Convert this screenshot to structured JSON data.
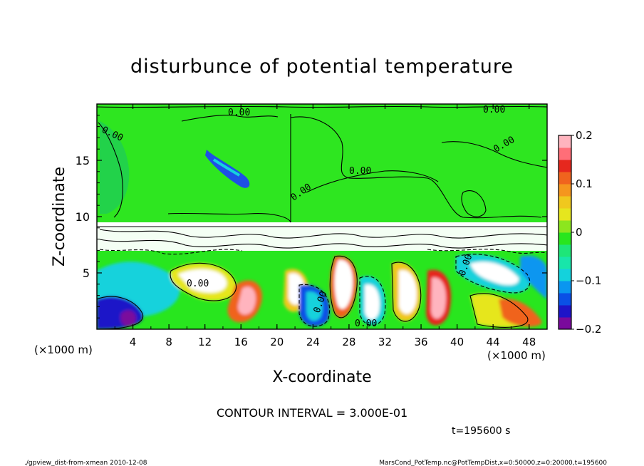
{
  "chart_data": {
    "type": "heatmap",
    "title": "disturbunce of potential temperature",
    "xlabel": "X-coordinate",
    "ylabel": "Z-coordinate",
    "x_unit": "(×1000 m)",
    "y_unit": "(×1000 m)",
    "xlim": [
      0,
      50
    ],
    "ylim": [
      0,
      20
    ],
    "x_ticks": [
      "4",
      "8",
      "12",
      "16",
      "20",
      "24",
      "28",
      "32",
      "36",
      "40",
      "44",
      "48"
    ],
    "y_ticks": [
      "5",
      "10",
      "15"
    ],
    "colorbar": {
      "range": [
        -0.2,
        0.2
      ],
      "tick_labels": [
        "0.2",
        "0.1",
        "0",
        "−0.1",
        "−0.2"
      ],
      "colors": [
        "#7a0a9c",
        "#1e14c8",
        "#0a50e6",
        "#0a96f0",
        "#14d2dc",
        "#18e6aa",
        "#1ee678",
        "#28e61e",
        "#8ce61e",
        "#e6e61e",
        "#f0c81e",
        "#f5961e",
        "#f0641e",
        "#e6281e",
        "#ff6e78",
        "#ffb4be"
      ]
    },
    "contour_labels": [
      "0.00",
      "0.00",
      "0.00",
      "0.00",
      "0.00",
      "0.00",
      "0.00",
      "0.00",
      "0.00",
      "0.00"
    ],
    "annotations": {
      "contour_interval": "CONTOUR INTERVAL = 3.000E-01",
      "time": "t=195600 s"
    }
  },
  "footer": {
    "left": "./gpview_dist-from-xmean  2010-12-08",
    "right": "MarsCond_PotTemp.nc@PotTempDist,x=0:50000,z=0:20000,t=195600"
  }
}
